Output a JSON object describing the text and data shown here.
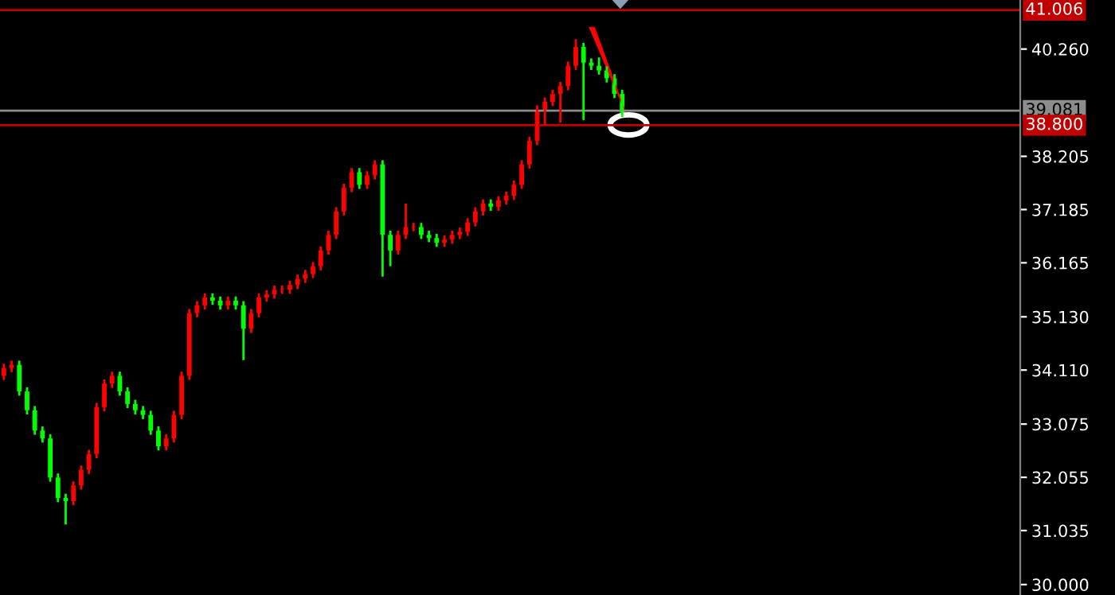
{
  "chart_data": {
    "type": "candlestick",
    "categories": [
      null,
      null,
      null,
      null,
      null,
      null,
      null,
      null,
      null,
      null,
      null,
      null,
      null,
      null,
      null,
      null,
      null,
      null,
      null,
      null,
      null,
      null,
      null,
      null,
      null,
      null,
      null,
      null,
      null,
      null,
      null,
      null,
      null,
      null,
      null,
      null,
      null,
      null,
      null,
      null,
      null,
      null,
      null,
      null,
      null,
      null,
      null,
      null,
      null,
      null,
      null,
      null,
      null,
      null,
      null,
      null,
      null,
      null,
      null,
      null,
      null,
      null,
      null,
      null,
      null,
      null,
      null,
      null,
      null,
      null,
      null,
      null,
      null,
      null,
      null,
      null,
      null,
      null,
      null,
      null,
      null,
      null,
      null,
      null,
      null,
      null,
      null,
      null,
      null,
      null,
      null,
      null,
      null,
      null,
      null,
      null,
      null,
      null,
      null,
      null,
      null,
      null,
      null,
      null,
      null,
      null,
      null,
      null,
      null,
      null,
      null,
      null,
      null,
      null,
      null,
      null,
      null,
      null,
      null,
      null,
      null,
      null,
      null,
      null,
      null,
      null,
      null,
      null,
      null,
      null,
      null,
      null
    ],
    "ohlc": [
      [
        34.0,
        34.23,
        33.92,
        34.15
      ],
      [
        34.15,
        34.29,
        34.07,
        34.21
      ],
      [
        34.21,
        34.29,
        33.62,
        33.7
      ],
      [
        33.7,
        33.78,
        33.26,
        33.34
      ],
      [
        33.34,
        33.42,
        32.87,
        32.95
      ],
      [
        32.95,
        33.03,
        32.72,
        32.8
      ],
      [
        32.8,
        32.88,
        31.97,
        32.05
      ],
      [
        32.05,
        32.13,
        31.58,
        31.66
      ],
      [
        31.66,
        31.74,
        31.15,
        31.6
      ],
      [
        31.6,
        31.98,
        31.52,
        31.9
      ],
      [
        31.9,
        32.28,
        31.82,
        32.2
      ],
      [
        32.2,
        32.58,
        32.12,
        32.5
      ],
      [
        32.5,
        33.48,
        32.42,
        33.4
      ],
      [
        33.4,
        33.93,
        33.32,
        33.85
      ],
      [
        33.85,
        34.08,
        33.77,
        34.0
      ],
      [
        34.0,
        34.08,
        33.62,
        33.7
      ],
      [
        33.7,
        33.78,
        33.38,
        33.46
      ],
      [
        33.46,
        33.54,
        33.26,
        33.34
      ],
      [
        33.34,
        33.42,
        33.17,
        33.25
      ],
      [
        33.25,
        33.33,
        32.87,
        32.95
      ],
      [
        32.95,
        33.03,
        32.57,
        32.65
      ],
      [
        32.65,
        32.88,
        32.57,
        32.8
      ],
      [
        32.8,
        33.33,
        32.72,
        33.25
      ],
      [
        33.25,
        34.08,
        33.17,
        34.0
      ],
      [
        34.0,
        35.28,
        33.92,
        35.2
      ],
      [
        35.2,
        35.43,
        35.12,
        35.35
      ],
      [
        35.35,
        35.58,
        35.27,
        35.5
      ],
      [
        35.5,
        35.58,
        35.36,
        35.44
      ],
      [
        35.44,
        35.52,
        35.27,
        35.35
      ],
      [
        35.35,
        35.52,
        35.27,
        35.44
      ],
      [
        35.44,
        35.52,
        35.27,
        35.35
      ],
      [
        35.35,
        35.43,
        34.3,
        34.9
      ],
      [
        34.9,
        35.28,
        34.82,
        35.2
      ],
      [
        35.2,
        35.58,
        35.12,
        35.5
      ],
      [
        35.5,
        35.64,
        35.42,
        35.56
      ],
      [
        35.56,
        35.73,
        35.48,
        35.65
      ],
      [
        35.65,
        35.73,
        35.57,
        35.65
      ],
      [
        35.65,
        35.82,
        35.57,
        35.74
      ],
      [
        35.74,
        35.94,
        35.66,
        35.86
      ],
      [
        35.86,
        36.03,
        35.78,
        35.95
      ],
      [
        35.95,
        36.18,
        35.87,
        36.1
      ],
      [
        36.1,
        36.48,
        36.02,
        36.4
      ],
      [
        36.4,
        36.78,
        36.32,
        36.7
      ],
      [
        36.7,
        37.23,
        36.62,
        37.15
      ],
      [
        37.15,
        37.68,
        37.07,
        37.6
      ],
      [
        37.6,
        37.98,
        37.52,
        37.9
      ],
      [
        37.9,
        37.98,
        37.58,
        37.66
      ],
      [
        37.66,
        37.92,
        37.58,
        37.84
      ],
      [
        37.84,
        38.13,
        37.76,
        38.05
      ],
      [
        38.05,
        38.13,
        35.9,
        36.7
      ],
      [
        36.7,
        36.78,
        36.1,
        36.4
      ],
      [
        36.4,
        36.78,
        36.32,
        36.7
      ],
      [
        36.7,
        37.3,
        36.62,
        36.85
      ],
      [
        36.85,
        36.93,
        36.77,
        36.85
      ],
      [
        36.85,
        36.93,
        36.62,
        36.7
      ],
      [
        36.7,
        36.78,
        36.56,
        36.64
      ],
      [
        36.64,
        36.72,
        36.47,
        36.55
      ],
      [
        36.55,
        36.69,
        36.47,
        36.61
      ],
      [
        36.61,
        36.78,
        36.53,
        36.7
      ],
      [
        36.7,
        36.84,
        36.62,
        36.76
      ],
      [
        36.76,
        37.02,
        36.68,
        36.94
      ],
      [
        36.94,
        37.23,
        36.86,
        37.15
      ],
      [
        37.15,
        37.38,
        37.07,
        37.3
      ],
      [
        37.3,
        37.38,
        37.16,
        37.24
      ],
      [
        37.24,
        37.44,
        37.16,
        37.36
      ],
      [
        37.36,
        37.53,
        37.28,
        37.45
      ],
      [
        37.45,
        37.74,
        37.37,
        37.66
      ],
      [
        37.66,
        38.13,
        37.58,
        38.05
      ],
      [
        38.05,
        38.58,
        37.97,
        38.5
      ],
      [
        38.5,
        39.18,
        38.42,
        39.1
      ],
      [
        39.1,
        39.33,
        38.8,
        39.25
      ],
      [
        39.25,
        39.48,
        39.17,
        39.4
      ],
      [
        39.4,
        39.63,
        38.85,
        39.55
      ],
      [
        39.55,
        40.02,
        39.47,
        39.94
      ],
      [
        39.94,
        40.45,
        39.86,
        40.3
      ],
      [
        40.3,
        40.38,
        38.9,
        40.0
      ],
      [
        40.0,
        40.08,
        39.86,
        39.94
      ],
      [
        39.94,
        40.1,
        39.77,
        39.85
      ],
      [
        39.85,
        39.93,
        39.62,
        39.7
      ],
      [
        39.7,
        39.78,
        39.32,
        39.4
      ],
      [
        39.4,
        39.48,
        38.96,
        39.04
      ],
      null,
      null,
      null,
      null,
      null,
      null,
      null,
      null,
      null,
      null,
      null,
      null,
      null,
      null,
      null,
      null,
      null,
      null,
      null,
      null,
      null,
      null,
      null,
      null,
      null,
      null,
      null,
      null,
      null,
      null,
      null,
      null,
      null,
      null,
      null,
      null,
      null,
      null,
      null,
      null,
      null,
      null,
      null,
      null,
      null,
      null,
      null,
      null,
      null,
      null,
      null
    ],
    "colors": [
      "#ff0000",
      "#ff0000",
      "#00ff00",
      "#00ff00",
      "#00ff00",
      "#00ff00",
      "#00ff00",
      "#00ff00",
      "#00ff00",
      "#ff0000",
      "#ff0000",
      "#ff0000",
      "#ff0000",
      "#ff0000",
      "#ff0000",
      "#00ff00",
      "#00ff00",
      "#00ff00",
      "#00ff00",
      "#00ff00",
      "#00ff00",
      "#ff0000",
      "#ff0000",
      "#ff0000",
      "#ff0000",
      "#ff0000",
      "#ff0000",
      "#00ff00",
      "#00ff00",
      "#ff0000",
      "#00ff00",
      "#00ff00",
      "#ff0000",
      "#ff0000",
      "#ff0000",
      "#ff0000",
      "#ff0000",
      "#ff0000",
      "#ff0000",
      "#ff0000",
      "#ff0000",
      "#ff0000",
      "#ff0000",
      "#ff0000",
      "#ff0000",
      "#ff0000",
      "#00ff00",
      "#ff0000",
      "#ff0000",
      "#00ff00",
      "#00ff00",
      "#ff0000",
      "#ff0000",
      "#ff0000",
      "#00ff00",
      "#00ff00",
      "#00ff00",
      "#ff0000",
      "#ff0000",
      "#ff0000",
      "#ff0000",
      "#ff0000",
      "#ff0000",
      "#00ff00",
      "#ff0000",
      "#ff0000",
      "#ff0000",
      "#ff0000",
      "#ff0000",
      "#ff0000",
      "#ff0000",
      "#ff0000",
      "#ff0000",
      "#ff0000",
      "#ff0000",
      "#00ff00",
      "#00ff00",
      "#00ff00",
      "#00ff00",
      "#00ff00",
      "#00ff00",
      null,
      null,
      null,
      null,
      null,
      null,
      null,
      null,
      null,
      null,
      null,
      null,
      null,
      null,
      null,
      null,
      null,
      null,
      null,
      null,
      null,
      null,
      null,
      null,
      null,
      null,
      null,
      null,
      null,
      null,
      null,
      null,
      null,
      null,
      null,
      null,
      null,
      null,
      null,
      null,
      null,
      null,
      null,
      null,
      null,
      null,
      null,
      null,
      null,
      null,
      null
    ],
    "ylim": [
      29.8,
      41.2
    ],
    "yticks": [
      {
        "value": 30.0,
        "label": "30.000"
      },
      {
        "value": 31.035,
        "label": "31.035"
      },
      {
        "value": 32.055,
        "label": "32.055"
      },
      {
        "value": 33.075,
        "label": "33.075"
      },
      {
        "value": 34.11,
        "label": "34.110"
      },
      {
        "value": 35.13,
        "label": "35.130"
      },
      {
        "value": 36.165,
        "label": "36.165"
      },
      {
        "value": 37.185,
        "label": "37.185"
      },
      {
        "value": 38.205,
        "label": "38.205"
      },
      {
        "value": 40.26,
        "label": "40.260"
      }
    ],
    "ref_lines": [
      {
        "axis": "y",
        "value": 41.006,
        "label": "41.006",
        "color": "#c00000"
      },
      {
        "axis": "y",
        "value": 39.081,
        "label": "39.081",
        "color": "#8c8c8c"
      },
      {
        "axis": "y",
        "value": 38.8,
        "label": "38.800",
        "color": "#c00000"
      }
    ],
    "grid": false,
    "legend": false
  }
}
